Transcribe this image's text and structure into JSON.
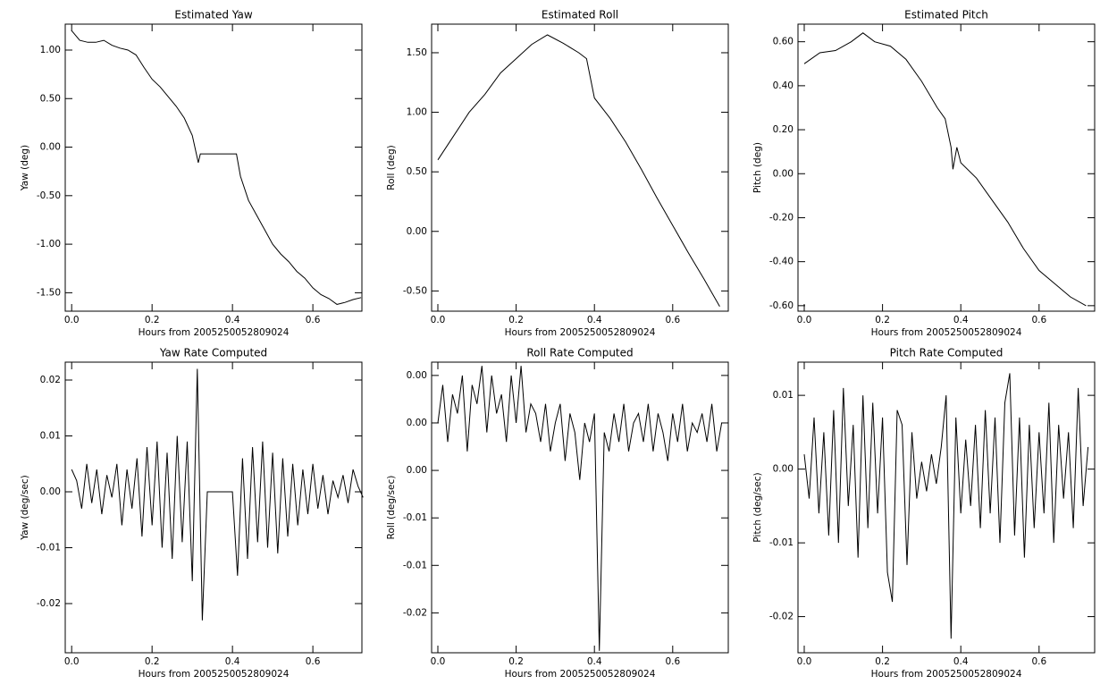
{
  "chart_data": [
    {
      "type": "line",
      "title": "Estimated Yaw",
      "x_label": "Hours from 2005250052809024",
      "y_label": "Yaw (deg)",
      "color": "#000000",
      "x": [
        0,
        0.02,
        0.04,
        0.06,
        0.08,
        0.1,
        0.12,
        0.14,
        0.16,
        0.18,
        0.2,
        0.22,
        0.24,
        0.26,
        0.28,
        0.3,
        0.315,
        0.32,
        0.41,
        0.42,
        0.44,
        0.46,
        0.48,
        0.5,
        0.52,
        0.54,
        0.56,
        0.58,
        0.6,
        0.62,
        0.64,
        0.66,
        0.68,
        0.7,
        0.72
      ],
      "values": [
        1.2,
        1.1,
        1.08,
        1.08,
        1.1,
        1.05,
        1.02,
        1.0,
        0.95,
        0.82,
        0.7,
        0.62,
        0.52,
        0.42,
        0.3,
        0.12,
        -0.16,
        -0.07,
        -0.07,
        -0.3,
        -0.55,
        -0.7,
        -0.85,
        -1.0,
        -1.1,
        -1.18,
        -1.28,
        -1.35,
        -1.45,
        -1.52,
        -1.56,
        -1.62,
        -1.6,
        -1.57,
        -1.55
      ],
      "xlim": [
        -0.016,
        0.722
      ],
      "xticks": [
        {
          "value": 0,
          "label": "0.0"
        },
        0.2,
        0.4,
        0.6
      ],
      "ylim": [
        -1.69,
        1.267
      ],
      "yticks": [
        {
          "value": 1,
          "label": "1.00"
        },
        {
          "value": 0.5,
          "label": "0.50"
        },
        {
          "value": 0,
          "label": "0.00"
        },
        {
          "value": -0.5,
          "label": "-0.50"
        },
        {
          "value": -1,
          "label": "-1.00"
        },
        {
          "value": -1.5,
          "label": "-1.50"
        }
      ]
    },
    {
      "type": "line",
      "title": "Estimated Roll",
      "x_label": "Hours from 2005250052809024",
      "y_label": "Roll (deg)",
      "color": "#000000",
      "x": [
        0,
        0.04,
        0.08,
        0.12,
        0.16,
        0.2,
        0.24,
        0.28,
        0.32,
        0.36,
        0.38,
        0.4,
        0.44,
        0.48,
        0.52,
        0.56,
        0.6,
        0.64,
        0.68,
        0.72
      ],
      "values": [
        0.6,
        0.8,
        1.0,
        1.15,
        1.33,
        1.45,
        1.57,
        1.65,
        1.58,
        1.5,
        1.45,
        1.12,
        0.95,
        0.75,
        0.52,
        0.28,
        0.05,
        -0.18,
        -0.4,
        -0.63
      ],
      "xlim": [
        -0.016,
        0.742
      ],
      "xticks": [
        {
          "value": 0,
          "label": "0.0"
        },
        0.2,
        0.4,
        0.6
      ],
      "ylim": [
        -0.67,
        1.74
      ],
      "yticks": [
        {
          "value": 1.5,
          "label": "1.50"
        },
        {
          "value": 1,
          "label": "1.00"
        },
        {
          "value": 0.5,
          "label": "0.50"
        },
        {
          "value": 0,
          "label": "0.00"
        },
        {
          "value": -0.5,
          "label": "-0.50"
        }
      ]
    },
    {
      "type": "line",
      "title": "Estimated Pitch",
      "x_label": "Hours from 2005250052809024",
      "y_label": "Pitch (deg)",
      "color": "#000000",
      "x": [
        0,
        0.04,
        0.08,
        0.12,
        0.15,
        0.18,
        0.22,
        0.26,
        0.3,
        0.34,
        0.36,
        0.375,
        0.38,
        0.39,
        0.4,
        0.44,
        0.48,
        0.52,
        0.56,
        0.6,
        0.64,
        0.68,
        0.72
      ],
      "values": [
        0.5,
        0.55,
        0.56,
        0.6,
        0.64,
        0.6,
        0.58,
        0.52,
        0.42,
        0.3,
        0.25,
        0.12,
        0.02,
        0.12,
        0.05,
        -0.02,
        -0.12,
        -0.22,
        -0.34,
        -0.44,
        -0.5,
        -0.56,
        -0.6
      ],
      "xlim": [
        -0.016,
        0.742
      ],
      "xticks": [
        {
          "value": 0,
          "label": "0.0"
        },
        0.2,
        0.4,
        0.6
      ],
      "ylim": [
        -0.625,
        0.68
      ],
      "yticks": [
        {
          "value": 0.6,
          "label": "0.60"
        },
        {
          "value": 0.4,
          "label": "0.40"
        },
        {
          "value": 0.2,
          "label": "0.20"
        },
        {
          "value": 0,
          "label": "0.00"
        },
        {
          "value": -0.2,
          "label": "-0.20"
        },
        {
          "value": -0.4,
          "label": "-0.40"
        },
        {
          "value": -0.6,
          "label": "-0.60"
        }
      ]
    },
    {
      "type": "line",
      "title": "Yaw Rate Computed",
      "x_label": "Hours from 2005250052809024",
      "y_label": "Yaw (deg/sec)",
      "color": "#000000",
      "x": [
        0,
        0.0125,
        0.025,
        0.0375,
        0.05,
        0.0625,
        0.075,
        0.0875,
        0.1,
        0.1125,
        0.125,
        0.1375,
        0.15,
        0.1625,
        0.175,
        0.1875,
        0.2,
        0.2125,
        0.225,
        0.2375,
        0.25,
        0.2625,
        0.275,
        0.2875,
        0.3,
        0.3125,
        0.325,
        0.3375,
        0.35,
        0.3625,
        0.375,
        0.3875,
        0.4,
        0.4125,
        0.425,
        0.4375,
        0.45,
        0.4625,
        0.475,
        0.4875,
        0.5,
        0.5125,
        0.525,
        0.5375,
        0.55,
        0.5625,
        0.575,
        0.5875,
        0.6,
        0.6125,
        0.625,
        0.6375,
        0.65,
        0.6625,
        0.675,
        0.6875,
        0.7,
        0.7125,
        0.725
      ],
      "values": [
        0.004,
        0.002,
        -0.003,
        0.005,
        -0.002,
        0.004,
        -0.004,
        0.003,
        -0.001,
        0.005,
        -0.006,
        0.004,
        -0.003,
        0.006,
        -0.008,
        0.008,
        -0.006,
        0.009,
        -0.01,
        0.007,
        -0.012,
        0.01,
        -0.009,
        0.009,
        -0.016,
        0.022,
        -0.023,
        0,
        0,
        0,
        0,
        0,
        0,
        -0.015,
        0.006,
        -0.012,
        0.008,
        -0.009,
        0.009,
        -0.01,
        0.007,
        -0.011,
        0.006,
        -0.008,
        0.005,
        -0.006,
        0.004,
        -0.004,
        0.005,
        -0.003,
        0.003,
        -0.004,
        0.002,
        -0.001,
        0.003,
        -0.002,
        0.004,
        0.001,
        -0.001
      ],
      "xlim": [
        -0.016,
        0.722
      ],
      "xticks": [
        {
          "value": 0,
          "label": "0.0"
        },
        0.2,
        0.4,
        0.6
      ],
      "ylim": [
        -0.0288,
        0.0232
      ],
      "yticks": [
        0.02,
        0.01,
        {
          "value": 0,
          "label": "0.00"
        },
        -0.01,
        -0.02
      ]
    },
    {
      "type": "line",
      "title": "Roll Rate Computed",
      "x_label": "Hours from 2005250052809024",
      "y_label": "Roll (deg/sec)",
      "color": "#000000",
      "x": [
        0,
        0.0125,
        0.025,
        0.0375,
        0.05,
        0.0625,
        0.075,
        0.0875,
        0.1,
        0.1125,
        0.125,
        0.1375,
        0.15,
        0.1625,
        0.175,
        0.1875,
        0.2,
        0.2125,
        0.225,
        0.2375,
        0.25,
        0.2625,
        0.275,
        0.2875,
        0.3,
        0.3125,
        0.325,
        0.3375,
        0.35,
        0.3625,
        0.375,
        0.3875,
        0.4,
        0.4125,
        0.425,
        0.4375,
        0.45,
        0.4625,
        0.475,
        0.4875,
        0.5,
        0.5125,
        0.525,
        0.5375,
        0.55,
        0.5625,
        0.575,
        0.5875,
        0.6,
        0.6125,
        0.625,
        0.6375,
        0.65,
        0.6625,
        0.675,
        0.6875,
        0.7,
        0.7125,
        0.725
      ],
      "values": [
        0.005,
        0.009,
        0.003,
        0.008,
        0.006,
        0.01,
        0.002,
        0.009,
        0.007,
        0.011,
        0.004,
        0.01,
        0.006,
        0.008,
        0.003,
        0.01,
        0.005,
        0.011,
        0.004,
        0.007,
        0.006,
        0.003,
        0.007,
        0.002,
        0.005,
        0.007,
        0.001,
        0.006,
        0.004,
        -0.001,
        0.005,
        0.003,
        0.006,
        -0.019,
        0.004,
        0.002,
        0.006,
        0.003,
        0.007,
        0.002,
        0.005,
        0.006,
        0.003,
        0.007,
        0.002,
        0.006,
        0.004,
        0.001,
        0.006,
        0.003,
        0.007,
        0.002,
        0.005,
        0.004,
        0.006,
        0.003,
        0.007,
        0.002,
        0.005
      ],
      "xlim": [
        -0.016,
        0.742
      ],
      "xticks": [
        {
          "value": 0,
          "label": "0.0"
        },
        0.2,
        0.4,
        0.6
      ],
      "ylim": [
        -0.0192,
        0.0114
      ],
      "yticks": [
        {
          "value": 0.01,
          "label": "0.00"
        },
        {
          "value": 0.005,
          "label": "0.00"
        },
        {
          "value": 0,
          "label": "0.00"
        },
        {
          "value": -0.005,
          "label": "-0.01"
        },
        {
          "value": -0.01,
          "label": "-0.01"
        },
        {
          "value": -0.015,
          "label": "-0.02"
        }
      ]
    },
    {
      "type": "line",
      "title": "Pitch Rate Computed",
      "x_label": "Hours from 2005250052809024",
      "y_label": "Pitch (deg/sec)",
      "color": "#000000",
      "x": [
        0,
        0.0125,
        0.025,
        0.0375,
        0.05,
        0.0625,
        0.075,
        0.0875,
        0.1,
        0.1125,
        0.125,
        0.1375,
        0.15,
        0.1625,
        0.175,
        0.1875,
        0.2,
        0.2125,
        0.225,
        0.2375,
        0.25,
        0.2625,
        0.275,
        0.2875,
        0.3,
        0.3125,
        0.325,
        0.3375,
        0.35,
        0.3625,
        0.375,
        0.3875,
        0.4,
        0.4125,
        0.425,
        0.4375,
        0.45,
        0.4625,
        0.475,
        0.4875,
        0.5,
        0.5125,
        0.525,
        0.5375,
        0.55,
        0.5625,
        0.575,
        0.5875,
        0.6,
        0.6125,
        0.625,
        0.6375,
        0.65,
        0.6625,
        0.675,
        0.6875,
        0.7,
        0.7125,
        0.725
      ],
      "values": [
        0.002,
        -0.004,
        0.007,
        -0.006,
        0.005,
        -0.009,
        0.008,
        -0.01,
        0.011,
        -0.005,
        0.006,
        -0.012,
        0.01,
        -0.008,
        0.009,
        -0.006,
        0.007,
        -0.014,
        -0.018,
        0.008,
        0.006,
        -0.013,
        0.005,
        -0.004,
        0.001,
        -0.003,
        0.002,
        -0.002,
        0.003,
        0.01,
        -0.023,
        0.007,
        -0.006,
        0.004,
        -0.005,
        0.006,
        -0.008,
        0.008,
        -0.006,
        0.007,
        -0.01,
        0.009,
        0.013,
        -0.009,
        0.007,
        -0.012,
        0.006,
        -0.008,
        0.005,
        -0.006,
        0.009,
        -0.01,
        0.006,
        -0.004,
        0.005,
        -0.008,
        0.011,
        -0.005,
        0.003
      ],
      "xlim": [
        -0.016,
        0.742
      ],
      "xticks": [
        {
          "value": 0,
          "label": "0.0"
        },
        0.2,
        0.4,
        0.6
      ],
      "ylim": [
        -0.0249,
        0.0145
      ],
      "yticks": [
        0.01,
        {
          "value": 0,
          "label": "0.00"
        },
        -0.01,
        -0.02
      ]
    }
  ]
}
